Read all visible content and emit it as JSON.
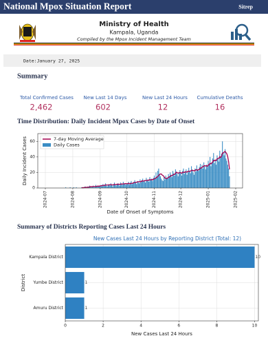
{
  "header": {
    "title": "National Mpox Situation Report",
    "badge": "Sitrep"
  },
  "masthead": {
    "ministry": "Ministry of Health",
    "location": "Kampala, Uganda",
    "compiled_by": "Compiled by the Mpox Incident Management Team"
  },
  "date": "Date:January 27, 2025",
  "summary": {
    "heading": "Summary",
    "metrics": [
      {
        "label": "Total Confirmed Cases",
        "value": "2,462"
      },
      {
        "label": "New Last 14 Days",
        "value": "602"
      },
      {
        "label": "New Last 24 Hours",
        "value": "12"
      },
      {
        "label": "Cumulative Deaths",
        "value": "16"
      }
    ]
  },
  "sections": [
    "Time Distribution: Daily Incident Mpox Cases by Date of Onset",
    "Summary of Districts Reporting Cases Last 24 Hours"
  ],
  "chart_data": [
    {
      "type": "bar",
      "xlabel": "Date of Onset of Symptoms",
      "ylabel": "Daily Incident Cases",
      "ylim": [
        0,
        70
      ],
      "yticks": [
        0,
        20,
        40,
        60
      ],
      "grid": true,
      "legend": "upper-left",
      "categories": [
        "2024-07",
        null,
        null,
        null,
        null,
        null,
        null,
        null,
        null,
        null,
        null,
        null,
        null,
        null,
        null,
        null,
        null,
        null,
        null,
        null,
        null,
        null,
        null,
        null,
        null,
        null,
        null,
        null,
        null,
        null,
        null,
        "2024-08",
        null,
        null,
        null,
        null,
        null,
        null,
        null,
        null,
        null,
        null,
        null,
        null,
        null,
        null,
        null,
        null,
        null,
        null,
        null,
        null,
        null,
        null,
        null,
        null,
        null,
        null,
        null,
        null,
        null,
        null,
        "2024-09",
        null,
        null,
        null,
        null,
        null,
        null,
        null,
        null,
        null,
        null,
        null,
        null,
        null,
        null,
        null,
        null,
        null,
        null,
        null,
        null,
        null,
        null,
        null,
        null,
        null,
        null,
        null,
        null,
        null,
        "2024-10",
        null,
        null,
        null,
        null,
        null,
        null,
        null,
        null,
        null,
        null,
        null,
        null,
        null,
        null,
        null,
        null,
        null,
        null,
        null,
        null,
        null,
        null,
        null,
        null,
        null,
        null,
        null,
        null,
        null,
        null,
        "2024-11",
        null,
        null,
        null,
        null,
        null,
        null,
        null,
        null,
        null,
        null,
        null,
        null,
        null,
        null,
        null,
        null,
        null,
        null,
        null,
        null,
        null,
        null,
        null,
        null,
        null,
        null,
        null,
        null,
        null,
        "2024-12",
        null,
        null,
        null,
        null,
        null,
        null,
        null,
        null,
        null,
        null,
        null,
        null,
        null,
        null,
        null,
        null,
        null,
        null,
        null,
        null,
        null,
        null,
        null,
        null,
        null,
        null,
        null,
        null,
        null,
        null,
        "2025-01",
        null,
        null,
        null,
        null,
        null,
        null,
        null,
        null,
        null,
        null,
        null,
        null,
        null,
        null,
        null,
        null,
        null,
        null,
        null,
        null,
        null,
        null,
        null,
        null,
        null,
        null,
        null,
        null,
        null,
        null,
        "2025-02"
      ],
      "series": [
        {
          "name": "7-day Moving Average",
          "type": "line",
          "color": "#a3004f",
          "values": [
            null,
            null,
            null,
            null,
            null,
            null,
            null,
            null,
            null,
            null,
            null,
            null,
            null,
            null,
            null,
            null,
            null,
            null,
            null,
            null,
            null,
            null,
            null,
            null,
            null,
            null,
            null,
            null,
            null,
            null,
            null,
            null,
            null,
            null,
            null,
            null,
            null,
            null,
            null,
            null,
            null,
            0.4,
            0.4,
            0.4,
            0.6,
            0.7,
            0.9,
            0.9,
            1.0,
            1.1,
            1.4,
            1.7,
            1.7,
            1.7,
            2.0,
            2.0,
            1.9,
            2.1,
            2.1,
            2.4,
            2.4,
            2.4,
            2.7,
            2.9,
            2.9,
            3.3,
            3.4,
            3.6,
            3.9,
            3.9,
            3.9,
            3.9,
            4.1,
            3.9,
            4.4,
            4.1,
            3.9,
            4.1,
            4.6,
            4.4,
            4.4,
            4.9,
            4.6,
            4.9,
            4.7,
            4.9,
            5.3,
            5.0,
            5.3,
            5.3,
            5.6,
            5.6,
            5.4,
            5.7,
            6.0,
            5.4,
            5.7,
            6.0,
            6.0,
            6.3,
            6.9,
            7.0,
            7.3,
            7.3,
            7.9,
            8.1,
            8.1,
            8.3,
            8.0,
            9.3,
            9.0,
            8.7,
            9.6,
            9.4,
            9.8,
            9.7,
            10.0,
            10.0,
            10.9,
            10.3,
            11.0,
            10.4,
            11.3,
            11.7,
            12.3,
            13.1,
            13.9,
            15.0,
            16.1,
            17.6,
            18.0,
            18.0,
            16.6,
            15.9,
            14.7,
            12.7,
            12.4,
            12.1,
            12.7,
            13.9,
            14.2,
            15.0,
            15.9,
            16.0,
            16.9,
            17.4,
            17.4,
            18.9,
            20.4,
            19.6,
            19.0,
            19.6,
            19.9,
            19.6,
            18.9,
            20.1,
            20.4,
            19.9,
            20.9,
            20.7,
            20.4,
            21.6,
            21.6,
            21.3,
            21.9,
            22.3,
            23.0,
            22.1,
            22.4,
            22.1,
            23.6,
            23.3,
            22.7,
            23.6,
            24.0,
            25.6,
            25.7,
            26.9,
            27.1,
            28.6,
            28.7,
            28.4,
            28.6,
            27.9,
            29.6,
            30.0,
            31.9,
            31.1,
            32.1,
            33.3,
            35.6,
            35.1,
            36.0,
            35.3,
            37.6,
            38.1,
            38.1,
            40.3,
            39.4,
            40.9,
            45.0,
            45.1,
            46.3,
            47.1,
            45.6,
            43.9,
            40.1,
            33.7,
            24.0,
            null,
            null,
            null,
            null,
            null,
            null,
            null
          ]
        },
        {
          "name": "Daily Cases",
          "type": "bar",
          "color": "#3a8dc4",
          "values": [
            0,
            0,
            0,
            0,
            0,
            0,
            0,
            0,
            0,
            0,
            0,
            0,
            0,
            0,
            0,
            0,
            0,
            0,
            0,
            0,
            0,
            0,
            0,
            1,
            0,
            0,
            0,
            0,
            1,
            0,
            0,
            0,
            1,
            0,
            0,
            1,
            0,
            0,
            0,
            0,
            0,
            1,
            0,
            0,
            1,
            2,
            1,
            0,
            2,
            1,
            3,
            2,
            1,
            2,
            3,
            1,
            2,
            4,
            2,
            3,
            2,
            3,
            3,
            4,
            2,
            5,
            3,
            4,
            6,
            3,
            2,
            4,
            5,
            3,
            6,
            4,
            2,
            5,
            7,
            4,
            3,
            5,
            6,
            4,
            3,
            7,
            5,
            4,
            8,
            5,
            6,
            4,
            6,
            5,
            8,
            4,
            7,
            9,
            5,
            6,
            8,
            10,
            7,
            5,
            9,
            8,
            6,
            11,
            7,
            9,
            12,
            8,
            10,
            7,
            13,
            9,
            11,
            8,
            14,
            10,
            12,
            9,
            13,
            16,
            12,
            20,
            14,
            22,
            25,
            18,
            15,
            12,
            10,
            9,
            14,
            11,
            16,
            13,
            12,
            18,
            15,
            20,
            17,
            14,
            22,
            19,
            16,
            24,
            21,
            18,
            15,
            20,
            23,
            19,
            16,
            22,
            25,
            18,
            21,
            24,
            17,
            20,
            26,
            22,
            19,
            28,
            23,
            20,
            17,
            25,
            21,
            29,
            24,
            22,
            27,
            31,
            26,
            30,
            25,
            33,
            28,
            24,
            30,
            27,
            35,
            30,
            40,
            28,
            33,
            38,
            45,
            32,
            36,
            30,
            42,
            38,
            34,
            48,
            40,
            44,
            60,
            46,
            42,
            50,
            38,
            35,
            30,
            25,
            15,
            0,
            0,
            0,
            0,
            0,
            0,
            0
          ]
        }
      ]
    },
    {
      "type": "barh",
      "title": "New Cases Last 24 Hours by Reporting District (Total: 12)",
      "xlabel": "New Cases Last 24 Hours",
      "ylabel": "District",
      "categories": [
        "Kampala District",
        "Yumbe District",
        "Amuru District"
      ],
      "values": [
        10,
        1,
        1
      ],
      "color": "#2f81c2",
      "xlim": [
        0,
        10.2
      ],
      "xticks": [
        0,
        2,
        4,
        6,
        8,
        10
      ],
      "grid": true
    }
  ]
}
